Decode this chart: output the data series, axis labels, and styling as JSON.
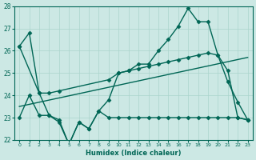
{
  "xlabel": "Humidex (Indice chaleur)",
  "background_color": "#cce8e4",
  "grid_color": "#aad4cc",
  "line_color": "#006655",
  "xlim": [
    -0.5,
    23.5
  ],
  "ylim": [
    22,
    28
  ],
  "yticks": [
    22,
    23,
    24,
    25,
    26,
    27,
    28
  ],
  "xticks": [
    0,
    1,
    2,
    3,
    4,
    5,
    6,
    7,
    8,
    9,
    10,
    11,
    12,
    13,
    14,
    15,
    16,
    17,
    18,
    19,
    20,
    21,
    22,
    23
  ],
  "series": [
    {
      "x": [
        0,
        1,
        2,
        3,
        4,
        5,
        6,
        7,
        8,
        9,
        10,
        11,
        12,
        13,
        14,
        15,
        16,
        17,
        18,
        19,
        20,
        21,
        22,
        23
      ],
      "y": [
        26.2,
        26.8,
        24.1,
        23.1,
        22.8,
        21.8,
        22.8,
        22.5,
        23.3,
        23.8,
        25.0,
        25.1,
        25.4,
        25.4,
        26.0,
        26.5,
        27.1,
        27.9,
        27.3,
        27.3,
        25.8,
        24.6,
        23.7,
        22.9
      ],
      "marker": "D",
      "markersize": 2.5,
      "linewidth": 1.0
    },
    {
      "x": [
        0,
        2,
        3,
        4,
        9,
        10,
        11,
        12,
        13,
        14,
        15,
        16,
        17,
        18,
        19,
        20,
        21,
        22,
        23
      ],
      "y": [
        26.2,
        24.1,
        24.1,
        24.2,
        24.7,
        25.0,
        25.1,
        25.2,
        25.3,
        25.4,
        25.5,
        25.6,
        25.7,
        25.8,
        25.9,
        25.8,
        25.1,
        23.0,
        22.9
      ],
      "marker": "D",
      "markersize": 2.5,
      "linewidth": 1.0
    },
    {
      "x": [
        0,
        1,
        2,
        3,
        4,
        5,
        6,
        7,
        8,
        9,
        10,
        11,
        12,
        13,
        14,
        15,
        16,
        17,
        18,
        19,
        20,
        21,
        22,
        23
      ],
      "y": [
        23.0,
        24.0,
        23.1,
        23.1,
        22.9,
        21.8,
        22.8,
        22.5,
        23.3,
        23.0,
        23.0,
        23.0,
        23.0,
        23.0,
        23.0,
        23.0,
        23.0,
        23.0,
        23.0,
        23.0,
        23.0,
        23.0,
        23.0,
        22.9
      ],
      "marker": "D",
      "markersize": 2.5,
      "linewidth": 1.0
    },
    {
      "x": [
        0,
        23
      ],
      "y": [
        23.5,
        25.7
      ],
      "marker": null,
      "markersize": 0,
      "linewidth": 1.0
    }
  ]
}
